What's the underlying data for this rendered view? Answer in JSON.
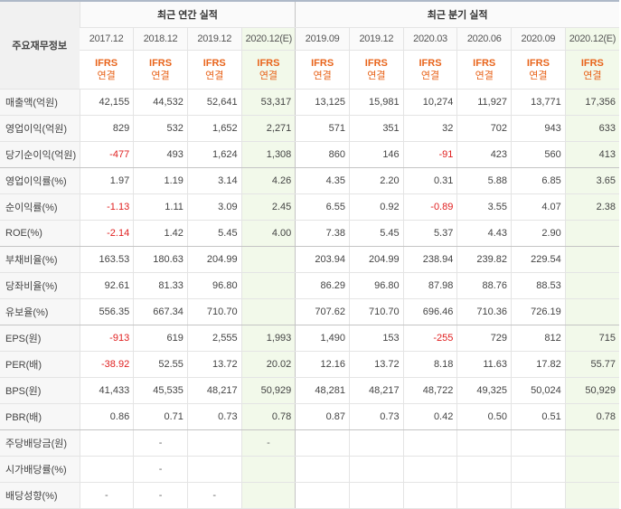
{
  "header": {
    "label_col": "주요재무정보",
    "annual_title": "최근 연간 실적",
    "quarterly_title": "최근 분기 실적",
    "periods": [
      "2017.12",
      "2018.12",
      "2019.12",
      "2020.12(E)",
      "2019.09",
      "2019.12",
      "2020.03",
      "2020.06",
      "2020.09",
      "2020.12(E)"
    ],
    "standard": "IFRS",
    "basis": "연결"
  },
  "colors": {
    "negative": "#e02020",
    "accent": "#e8641b",
    "estimate_bg": "#f2f9ea"
  },
  "rows": [
    {
      "label": "매출액(억원)",
      "values": [
        "42,155",
        "44,532",
        "52,641",
        "53,317",
        "13,125",
        "15,981",
        "10,274",
        "11,927",
        "13,771",
        "17,356"
      ]
    },
    {
      "label": "영업이익(억원)",
      "values": [
        "829",
        "532",
        "1,652",
        "2,271",
        "571",
        "351",
        "32",
        "702",
        "943",
        "633"
      ]
    },
    {
      "label": "당기순이익(억원)",
      "values": [
        "-477",
        "493",
        "1,624",
        "1,308",
        "860",
        "146",
        "-91",
        "423",
        "560",
        "413"
      ]
    },
    {
      "label": "영업이익률(%)",
      "values": [
        "1.97",
        "1.19",
        "3.14",
        "4.26",
        "4.35",
        "2.20",
        "0.31",
        "5.88",
        "6.85",
        "3.65"
      ]
    },
    {
      "label": "순이익률(%)",
      "values": [
        "-1.13",
        "1.11",
        "3.09",
        "2.45",
        "6.55",
        "0.92",
        "-0.89",
        "3.55",
        "4.07",
        "2.38"
      ]
    },
    {
      "label": "ROE(%)",
      "values": [
        "-2.14",
        "1.42",
        "5.45",
        "4.00",
        "7.38",
        "5.45",
        "5.37",
        "4.43",
        "2.90",
        ""
      ]
    },
    {
      "label": "부채비율(%)",
      "values": [
        "163.53",
        "180.63",
        "204.99",
        "",
        "203.94",
        "204.99",
        "238.94",
        "239.82",
        "229.54",
        ""
      ]
    },
    {
      "label": "당좌비율(%)",
      "values": [
        "92.61",
        "81.33",
        "96.80",
        "",
        "86.29",
        "96.80",
        "87.98",
        "88.76",
        "88.53",
        ""
      ]
    },
    {
      "label": "유보율(%)",
      "values": [
        "556.35",
        "667.34",
        "710.70",
        "",
        "707.62",
        "710.70",
        "696.46",
        "710.36",
        "726.19",
        ""
      ]
    },
    {
      "label": "EPS(원)",
      "values": [
        "-913",
        "619",
        "2,555",
        "1,993",
        "1,490",
        "153",
        "-255",
        "729",
        "812",
        "715"
      ]
    },
    {
      "label": "PER(배)",
      "values": [
        "-38.92",
        "52.55",
        "13.72",
        "20.02",
        "12.16",
        "13.72",
        "8.18",
        "11.63",
        "17.82",
        "55.77"
      ]
    },
    {
      "label": "BPS(원)",
      "values": [
        "41,433",
        "45,535",
        "48,217",
        "50,929",
        "48,281",
        "48,217",
        "48,722",
        "49,325",
        "50,024",
        "50,929"
      ]
    },
    {
      "label": "PBR(배)",
      "values": [
        "0.86",
        "0.71",
        "0.73",
        "0.78",
        "0.87",
        "0.73",
        "0.42",
        "0.50",
        "0.51",
        "0.78"
      ]
    },
    {
      "label": "주당배당금(원)",
      "values": [
        "",
        "-",
        "",
        "-",
        "",
        "",
        "",
        "",
        "",
        ""
      ]
    },
    {
      "label": "시가배당률(%)",
      "values": [
        "",
        "-",
        "",
        "",
        "",
        "",
        "",
        "",
        "",
        ""
      ]
    },
    {
      "label": "배당성향(%)",
      "values": [
        "-",
        "-",
        "-",
        "",
        "",
        "",
        "",
        "",
        "",
        ""
      ]
    }
  ]
}
